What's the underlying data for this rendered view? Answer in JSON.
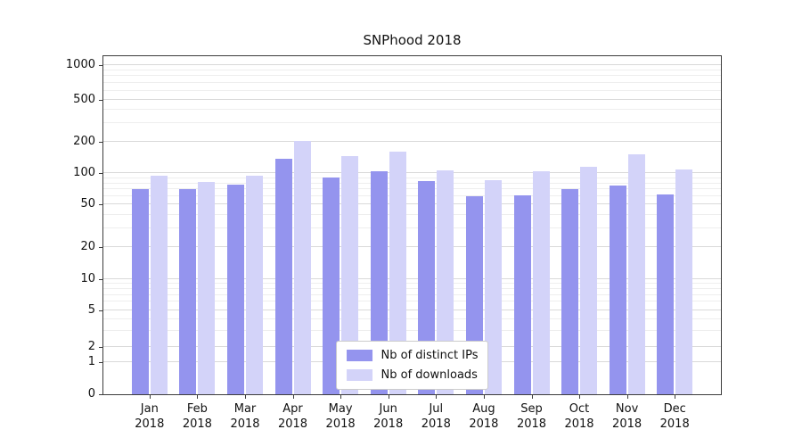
{
  "chart_data": {
    "type": "bar",
    "title": "SNPhood 2018",
    "yscale": "symlog",
    "grid": true,
    "legend_position": "lower center",
    "year": "2018",
    "categories": [
      "Jan",
      "Feb",
      "Mar",
      "Apr",
      "May",
      "Jun",
      "Jul",
      "Aug",
      "Sep",
      "Oct",
      "Nov",
      "Dec"
    ],
    "y_ticks": [
      0,
      1,
      2,
      5,
      10,
      20,
      50,
      100,
      200,
      500,
      1000
    ],
    "y_minor_ticks": [
      3,
      4,
      6,
      7,
      8,
      9,
      30,
      40,
      60,
      70,
      80,
      90,
      300,
      400,
      600,
      700,
      800,
      900
    ],
    "ylim": [
      0,
      1000
    ],
    "series": [
      {
        "name": "Nb of distinct IPs",
        "color": "#9494ee",
        "values": [
          70,
          70,
          78,
          138,
          92,
          104,
          85,
          60,
          61,
          71,
          76,
          62
        ]
      },
      {
        "name": "Nb of downloads",
        "color": "#d3d3f9",
        "values": [
          95,
          82,
          95,
          202,
          145,
          160,
          106,
          86,
          104,
          115,
          150,
          108
        ]
      }
    ]
  }
}
